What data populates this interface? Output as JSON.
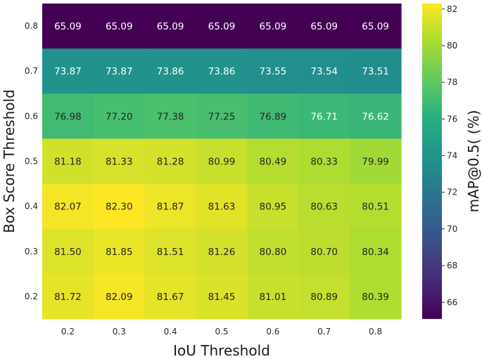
{
  "chart_data": {
    "type": "heatmap",
    "xlabel": "IoU Threshold",
    "ylabel": "Box Score Threshold",
    "colorbar_label": "mAP@0.5( (%)",
    "x": [
      "0.2",
      "0.3",
      "0.4",
      "0.5",
      "0.6",
      "0.7",
      "0.8"
    ],
    "y": [
      "0.8",
      "0.7",
      "0.6",
      "0.5",
      "0.4",
      "0.3",
      "0.2"
    ],
    "values": [
      [
        65.09,
        65.09,
        65.09,
        65.09,
        65.09,
        65.09,
        65.09
      ],
      [
        73.87,
        73.87,
        73.86,
        73.86,
        73.55,
        73.54,
        73.51
      ],
      [
        76.98,
        77.2,
        77.38,
        77.25,
        76.89,
        76.71,
        76.62
      ],
      [
        81.18,
        81.33,
        81.28,
        80.99,
        80.49,
        80.33,
        79.99
      ],
      [
        82.07,
        82.3,
        81.87,
        81.63,
        80.95,
        80.63,
        80.51
      ],
      [
        81.5,
        81.85,
        81.51,
        81.26,
        80.8,
        80.7,
        80.34
      ],
      [
        81.72,
        82.09,
        81.67,
        81.45,
        81.01,
        80.89,
        80.39
      ]
    ],
    "colormap": "viridis",
    "value_range": [
      65.09,
      82.3
    ],
    "colorbar_ticks": [
      "66",
      "68",
      "70",
      "72",
      "74",
      "76",
      "78",
      "80",
      "82"
    ],
    "grid": false,
    "legend": "colorbar-right"
  }
}
